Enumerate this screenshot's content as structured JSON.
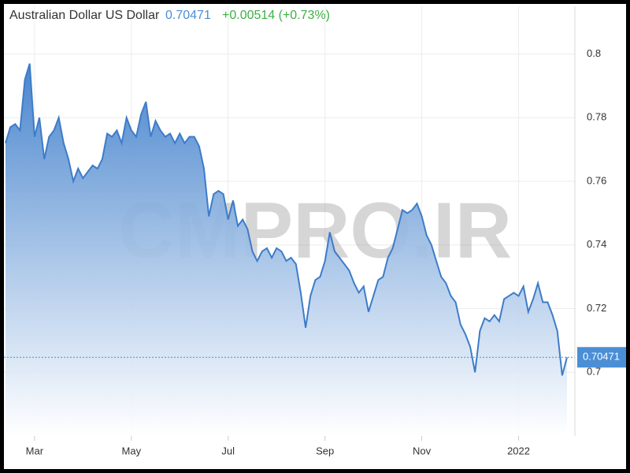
{
  "chart_data": {
    "type": "area",
    "title": "Australian Dollar US Dollar",
    "last_price": 0.70471,
    "change": "+0.00514 (+0.73%)",
    "watermark": "CMPRO.IR",
    "categories": [
      null,
      null,
      null,
      null,
      null,
      null,
      "Mar",
      null,
      null,
      null,
      null,
      null,
      null,
      null,
      null,
      null,
      null,
      null,
      null,
      null,
      null,
      null,
      null,
      null,
      null,
      null,
      "May",
      null,
      null,
      null,
      null,
      null,
      null,
      null,
      null,
      null,
      null,
      null,
      null,
      null,
      null,
      null,
      null,
      null,
      null,
      null,
      "Jul",
      null,
      null,
      null,
      null,
      null,
      null,
      null,
      null,
      null,
      null,
      null,
      null,
      null,
      null,
      null,
      null,
      null,
      null,
      null,
      "Sep",
      null,
      null,
      null,
      null,
      null,
      null,
      null,
      null,
      null,
      null,
      null,
      null,
      null,
      null,
      null,
      null,
      null,
      null,
      null,
      "Nov",
      null,
      null,
      null,
      null,
      null,
      null,
      null,
      null,
      null,
      null,
      null,
      null,
      null,
      null,
      null,
      null,
      null,
      null,
      null,
      "2022",
      null,
      null,
      null,
      null,
      null,
      null,
      null,
      null,
      null,
      null
    ],
    "series": [
      {
        "name": "Australian Dollar US Dollar",
        "color": "#3d7cc9",
        "values": [
          0.772,
          0.777,
          0.778,
          0.776,
          0.792,
          0.797,
          0.774,
          0.78,
          0.767,
          0.774,
          0.776,
          0.78,
          0.772,
          0.767,
          0.76,
          0.764,
          0.761,
          0.763,
          0.765,
          0.764,
          0.767,
          0.775,
          0.774,
          0.776,
          0.772,
          0.78,
          0.776,
          0.774,
          0.781,
          0.785,
          0.774,
          0.779,
          0.776,
          0.774,
          0.775,
          0.772,
          0.775,
          0.772,
          0.774,
          0.774,
          0.771,
          0.764,
          0.749,
          0.756,
          0.757,
          0.756,
          0.748,
          0.754,
          0.746,
          0.748,
          0.745,
          0.738,
          0.735,
          0.738,
          0.739,
          0.736,
          0.739,
          0.738,
          0.735,
          0.736,
          0.734,
          0.725,
          0.714,
          0.724,
          0.729,
          0.73,
          0.735,
          0.744,
          0.738,
          0.736,
          0.734,
          0.732,
          0.728,
          0.725,
          0.727,
          0.719,
          0.724,
          0.729,
          0.73,
          0.736,
          0.739,
          0.745,
          0.751,
          0.75,
          0.751,
          0.753,
          0.749,
          0.743,
          0.74,
          0.735,
          0.73,
          0.728,
          0.724,
          0.722,
          0.715,
          0.712,
          0.708,
          0.7,
          0.713,
          0.717,
          0.716,
          0.718,
          0.716,
          0.723,
          0.724,
          0.725,
          0.724,
          0.727,
          0.719,
          0.723,
          0.728,
          0.722,
          0.722,
          0.718,
          0.713,
          0.699,
          0.70471
        ]
      }
    ],
    "ylim": [
      0.68,
      0.815
    ],
    "yticks": [
      0.7,
      0.72,
      0.74,
      0.76,
      0.78,
      0.8
    ],
    "grid": true
  }
}
